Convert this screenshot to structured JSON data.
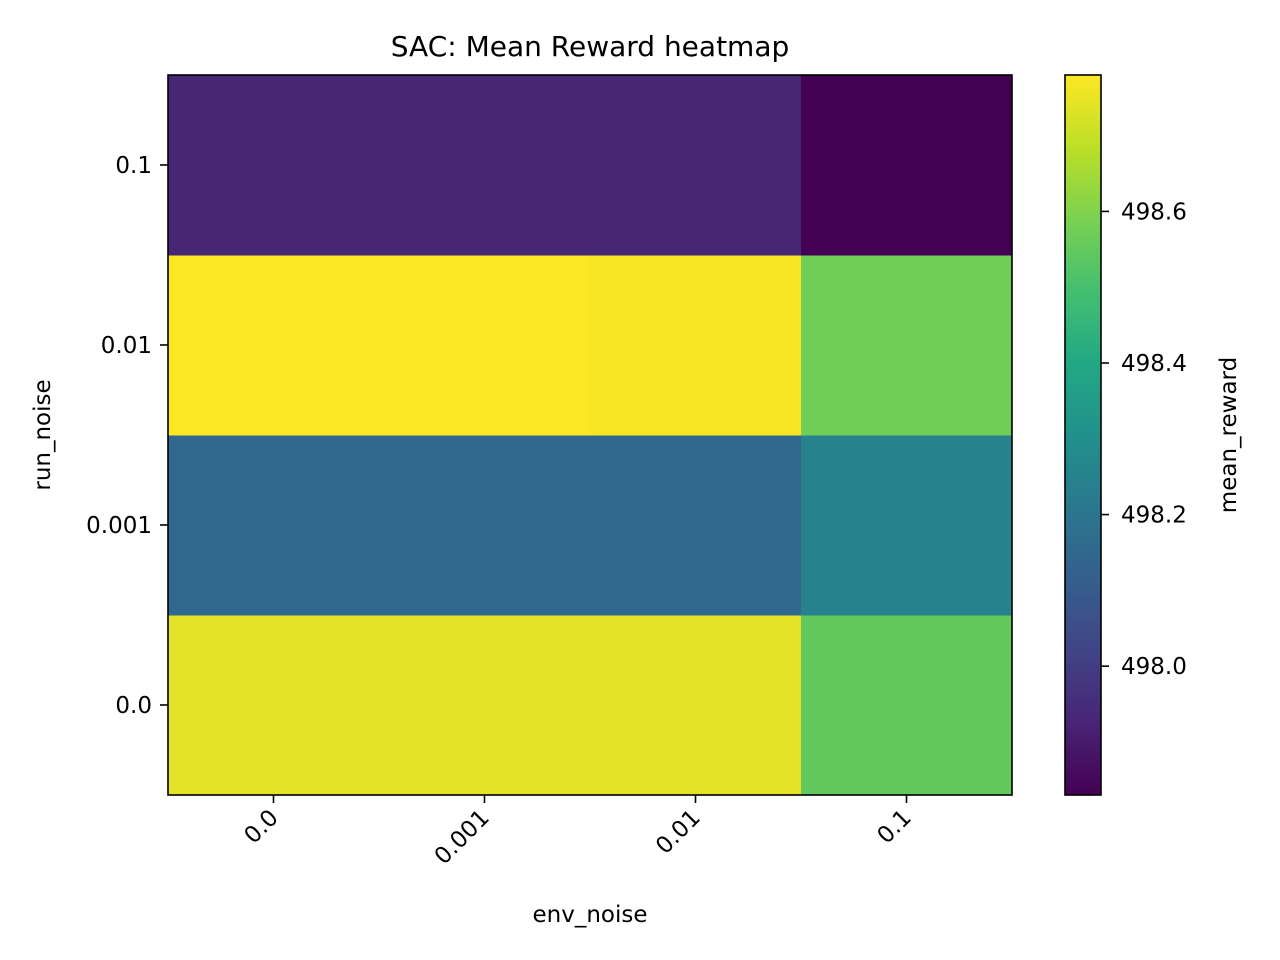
{
  "chart_data": {
    "type": "heatmap",
    "title": "SAC: Mean Reward heatmap",
    "xlabel": "env_noise",
    "ylabel": "run_noise",
    "x_categories": [
      "0.0",
      "0.001",
      "0.01",
      "0.1"
    ],
    "y_categories": [
      "0.0",
      "0.001",
      "0.01",
      "0.1"
    ],
    "values": [
      [
        498.74,
        498.74,
        498.74,
        498.55
      ],
      [
        498.15,
        498.15,
        498.15,
        498.25
      ],
      [
        498.78,
        498.78,
        498.77,
        498.57
      ],
      [
        497.93,
        497.93,
        497.93,
        497.83
      ]
    ],
    "colorbar": {
      "label": "mean_reward",
      "vmin": 497.83,
      "vmax": 498.78,
      "ticks": [
        "498.0",
        "498.2",
        "498.4",
        "498.6"
      ],
      "colormap": "viridis"
    }
  }
}
